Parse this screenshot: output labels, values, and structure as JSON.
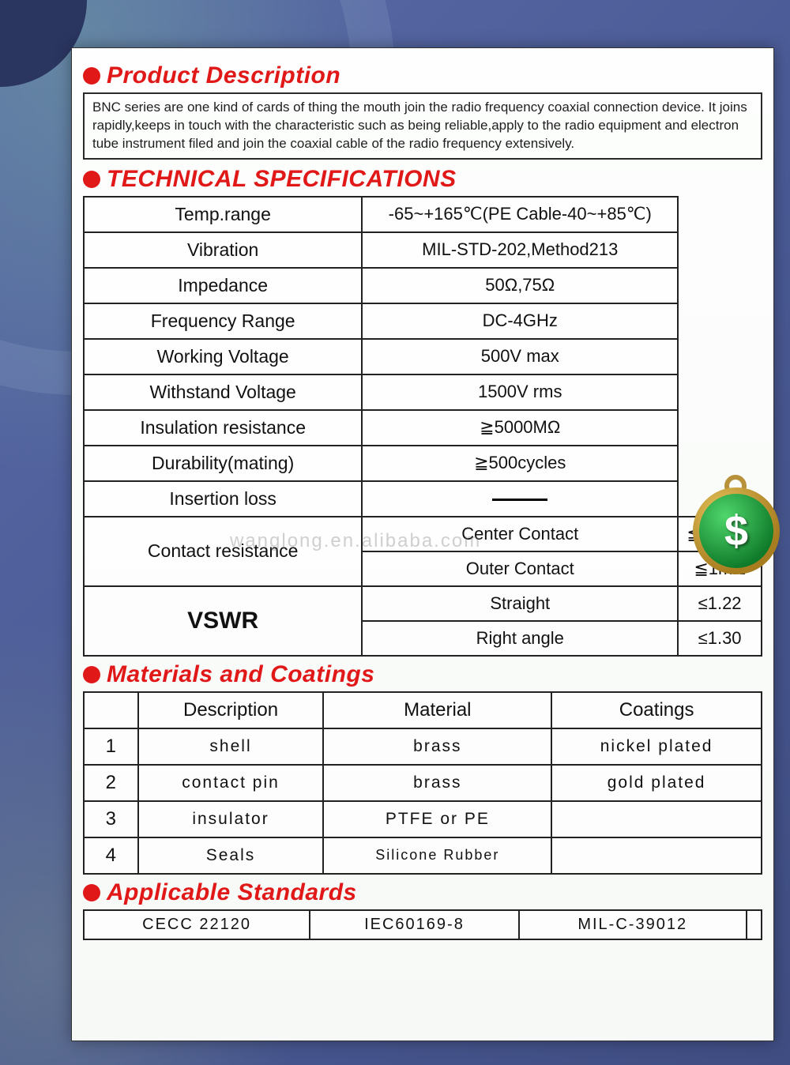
{
  "colors": {
    "accent_red": "#e01818",
    "border": "#222222",
    "bg_card": "#fafcf9",
    "bg_page": "#4a5a95"
  },
  "typography": {
    "heading_fontsize": 30,
    "body_fontsize": 22,
    "desc_fontsize": 17
  },
  "sections": {
    "product_desc": {
      "title": "Product Description",
      "text": "BNC series are one kind of cards of thing the mouth join the radio frequency coaxial connection device. It joins rapidly,keeps in touch with the characteristic such as being reliable,apply to the radio equipment and electron tube instrument filed and join the coaxial cable of the radio frequency extensively."
    },
    "tech_specs": {
      "title": "TECHNICAL SPECIFICATIONS",
      "rows": [
        {
          "label": "Temp.range",
          "value": "-65~+165℃(PE Cable-40~+85℃)"
        },
        {
          "label": "Vibration",
          "value": "MIL-STD-202,Method213"
        },
        {
          "label": "Impedance",
          "value": "50Ω,75Ω"
        },
        {
          "label": "Frequency Range",
          "value": "DC-4GHz"
        },
        {
          "label": "Working Voltage",
          "value": "500V  max"
        },
        {
          "label": "Withstand Voltage",
          "value": "1500V rms"
        },
        {
          "label": "Insulation resistance",
          "value": "≧5000MΩ"
        },
        {
          "label": "Durability(mating)",
          "value": "≧500cycles"
        },
        {
          "label": "Insertion loss",
          "value": "—"
        }
      ],
      "contact_resistance": {
        "label": "Contact resistance",
        "sub": [
          {
            "label": "Center Contact",
            "value": "≦1.5mΩ"
          },
          {
            "label": "Outer Contact",
            "value": "≦1mΩ"
          }
        ]
      },
      "vswr": {
        "label": "VSWR",
        "sub": [
          {
            "label": "Straight",
            "value": "≤1.22"
          },
          {
            "label": "Right angle",
            "value": "≤1.30"
          }
        ]
      }
    },
    "materials": {
      "title": "Materials and Coatings",
      "headers": [
        "",
        "Description",
        "Material",
        "Coatings"
      ],
      "rows": [
        {
          "n": "1",
          "desc": "shell",
          "mat": "brass",
          "coat": "nickel plated"
        },
        {
          "n": "2",
          "desc": "contact pin",
          "mat": "brass",
          "coat": "gold plated"
        },
        {
          "n": "3",
          "desc": "insulator",
          "mat": "PTFE or PE",
          "coat": ""
        },
        {
          "n": "4",
          "desc": "Seals",
          "mat": "Silicone Rubber",
          "coat": ""
        }
      ]
    },
    "standards": {
      "title": "Applicable Standards",
      "items": [
        "CECC 22120",
        "IEC60169-8",
        "MIL-C-39012",
        ""
      ]
    }
  },
  "watermark": "wanglong.en.alibaba.com",
  "coin_symbol": "$"
}
